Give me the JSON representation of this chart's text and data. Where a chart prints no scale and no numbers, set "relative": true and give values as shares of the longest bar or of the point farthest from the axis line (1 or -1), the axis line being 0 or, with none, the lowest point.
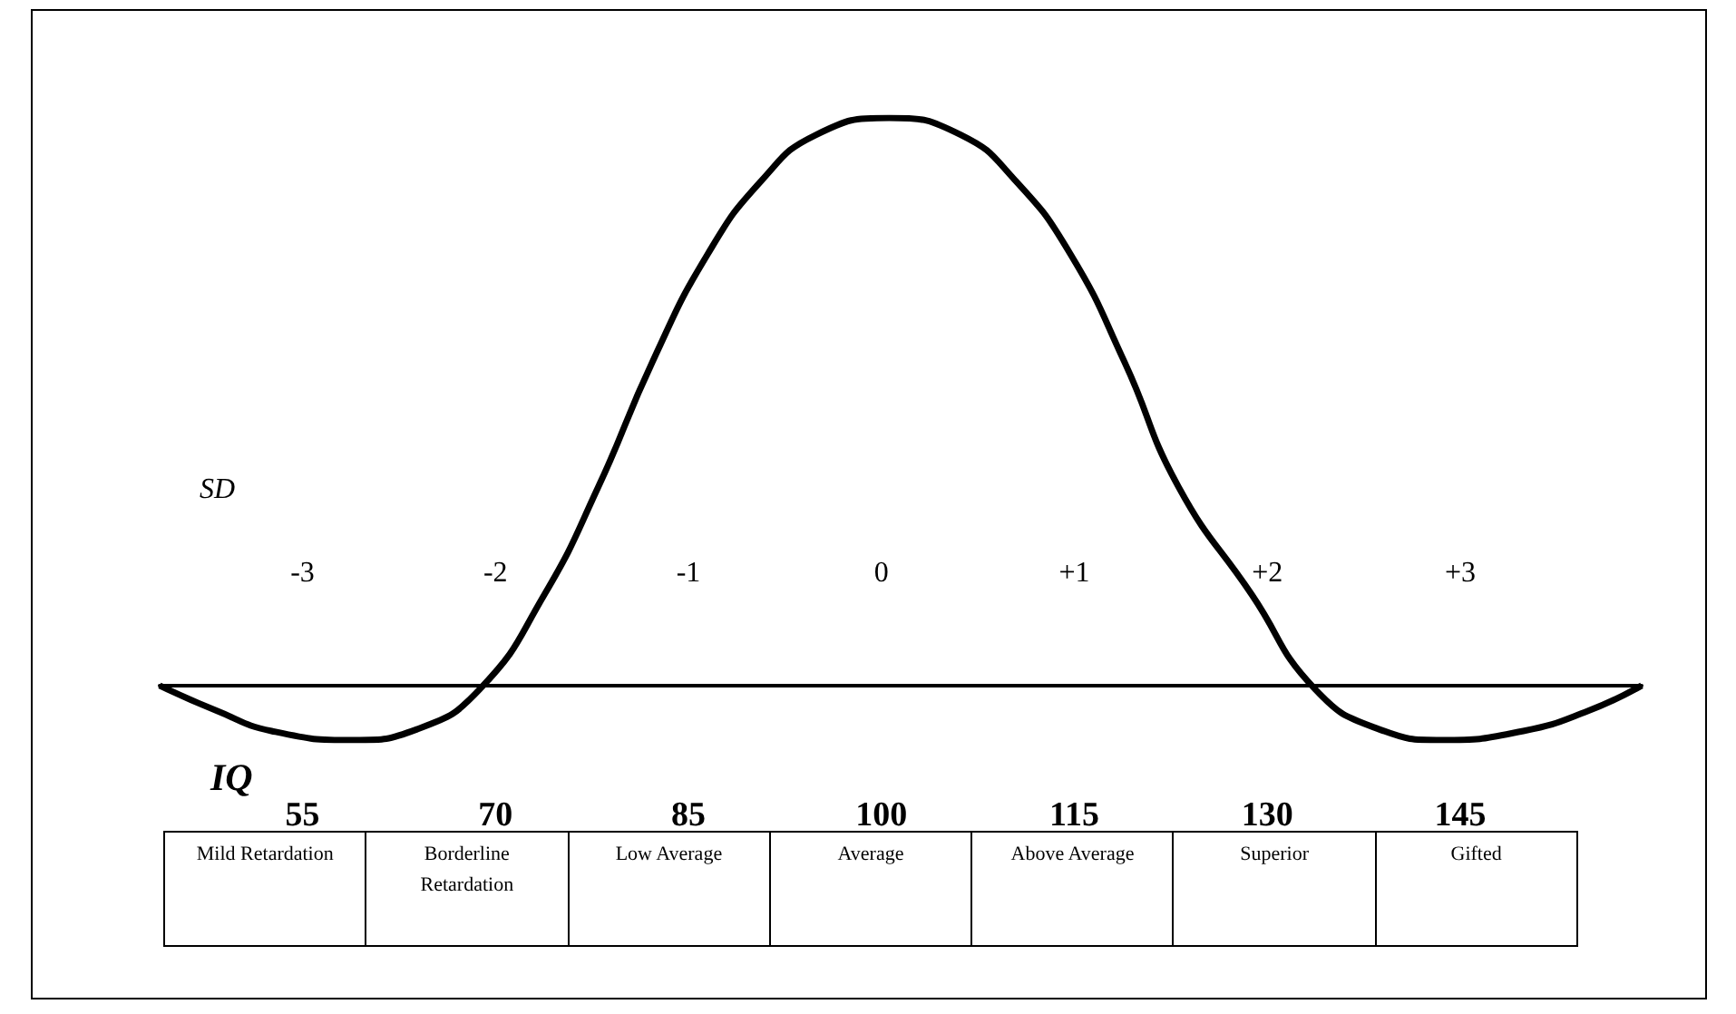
{
  "chart_data": {
    "type": "line",
    "relative": true,
    "xlabel": "IQ",
    "x2label": "SD",
    "x": [
      43.9,
      48.4,
      52.6,
      59.0,
      63.9,
      68.8,
      73.8,
      78.0,
      82.2,
      86.5,
      90.7,
      94.9,
      100.6,
      106.2,
      110.4,
      114.7,
      118.9,
      123.1,
      128.8,
      133.7,
      138.7,
      143.6,
      149.9,
      154.9,
      159.1
    ],
    "series": [
      {
        "color": "#000000",
        "values": [
          0,
          -0.045,
          -0.08,
          -0.096,
          -0.077,
          -0.006,
          0.16,
          0.35,
          0.57,
          0.76,
          0.89,
          0.97,
          1,
          0.97,
          0.89,
          0.76,
          0.57,
          0.35,
          0.16,
          -0.006,
          -0.077,
          -0.096,
          -0.08,
          -0.045,
          0
        ]
      }
    ],
    "xlim": [
      43.9,
      159.1
    ],
    "xticks": [
      55,
      70,
      85,
      100,
      115,
      130,
      145
    ],
    "x2lim": [
      -3.74,
      3.94
    ],
    "x2ticks": [
      -3,
      -2,
      -1,
      0,
      {
        "value": 1,
        "label": "+1"
      },
      {
        "value": 2,
        "label": "+2"
      },
      {
        "value": 3,
        "label": "+3"
      }
    ],
    "annotations": [
      "Mild Retardation",
      "Borderline Retardation",
      "Low Average",
      "Average",
      "Above Average",
      "Superior",
      "Gifted"
    ],
    "grid": false,
    "marker": "none",
    "line_style": "solid"
  }
}
